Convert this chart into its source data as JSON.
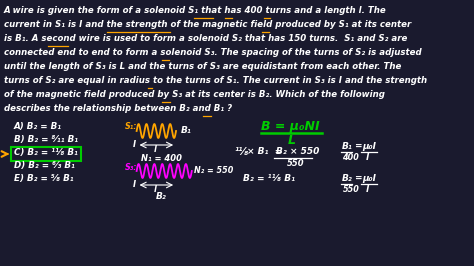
{
  "bg_color": "#1a1a2e",
  "text_color": "#ffffff",
  "dark_bg": "#16213e",
  "paragraph_lines": [
    "A wire is given the form of a solenoid S₁ that has 400 turns and a length l. The",
    "current in S₁ is I and the strength of the magnetic field produced by S₁ at its center",
    "is B₁. A second wire is used to form a solenoid S₂ that has 150 turns.  S₁ and S₂ are",
    "connected end to end to form a solenoid S₃. The spacing of the turns of S₂ is adjusted",
    "until the length of S₃ is L and the turns of S₃ are equidistant from each other. The",
    "turns of S₂ are equal in radius to the turns of S₁. The current in S₃ is I and the strength",
    "of the magnetic field produced by S₃ at its center is B₂. Which of the following",
    "describes the relationship between B₂ and B₁ ?"
  ],
  "answers": [
    "A) B₂ = B₁",
    "B) B₂ = ⁸⁄₁₁ B₁",
    "C) B₂ = ¹¹⁄₈ B₁",
    "D) B₂ = ⁶⁄₃ B₁",
    "E) B₂ = ⁵⁄₈ B₁"
  ],
  "orange_color": "#FFA500",
  "magenta_color": "#FF00FF",
  "cyan_color": "#00FFFF",
  "green_color": "#00CC00",
  "yellow_color": "#FFFF00",
  "white_color": "#ffffff",
  "box_color": "#00CC00",
  "arrow_color": "#FFA500",
  "formula_color": "#00CC00",
  "underline_color": "#FFA500"
}
